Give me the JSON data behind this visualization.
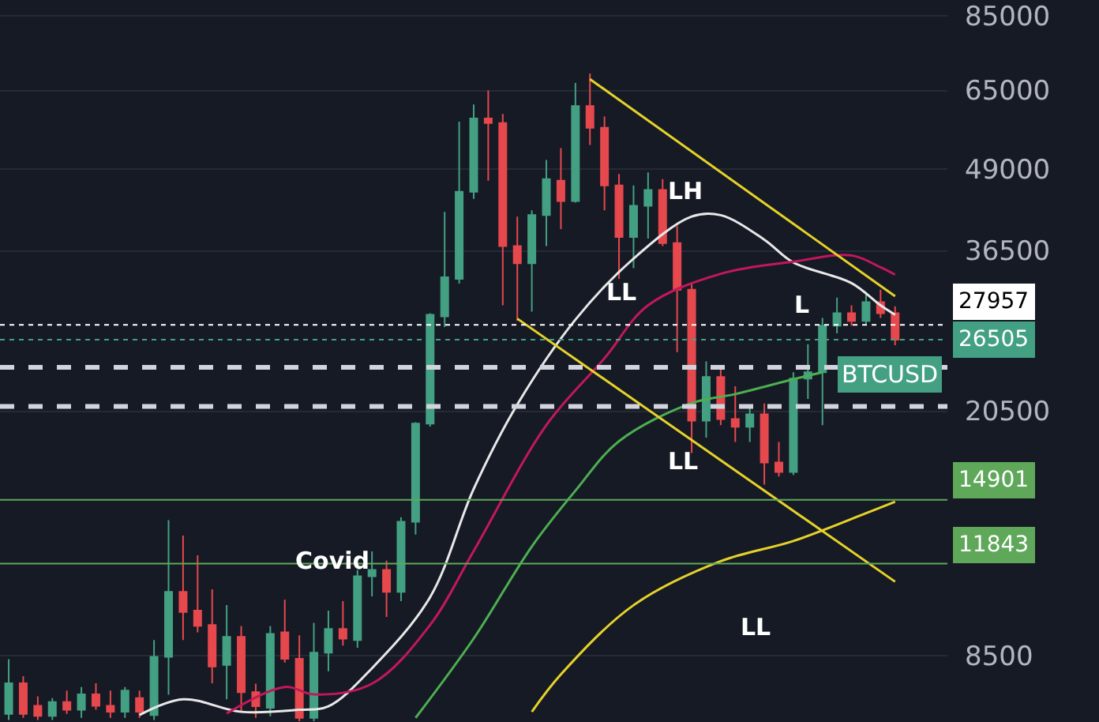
{
  "chart_data": {
    "type": "candlestick",
    "categories": [
      null,
      null,
      null,
      null,
      null,
      null,
      null,
      null,
      null,
      null,
      null,
      null,
      null,
      null,
      null,
      null,
      null,
      null,
      null,
      null,
      null,
      null,
      null,
      null,
      null,
      null,
      null,
      null,
      null,
      null,
      null,
      null,
      null,
      null,
      null,
      null,
      null,
      null,
      null,
      null,
      null,
      null,
      null,
      null,
      null,
      null,
      null,
      null,
      null,
      null,
      null,
      null,
      null,
      null,
      null,
      null,
      null,
      null,
      null,
      null,
      null,
      null
    ],
    "ohlc": [
      [
        6900,
        8400,
        6750,
        7700
      ],
      [
        7700,
        7900,
        6800,
        6900
      ],
      [
        7100,
        7350,
        6750,
        6850
      ],
      [
        6850,
        7300,
        6750,
        7200
      ],
      [
        7200,
        7500,
        6900,
        7000
      ],
      [
        7000,
        7600,
        6800,
        7400
      ],
      [
        7400,
        7700,
        7000,
        7100
      ],
      [
        7100,
        7500,
        6800,
        6950
      ],
      [
        6950,
        7600,
        6800,
        7500
      ],
      [
        7300,
        7500,
        6800,
        6950
      ],
      [
        6870,
        9000,
        6750,
        8470
      ],
      [
        8470,
        13850,
        7390,
        10700
      ],
      [
        10700,
        13100,
        9000,
        9950
      ],
      [
        10000,
        12200,
        9250,
        9470
      ],
      [
        9500,
        10800,
        7700,
        8180
      ],
      [
        8230,
        10200,
        7270,
        9100
      ],
      [
        9100,
        9460,
        6950,
        7460
      ],
      [
        7460,
        7690,
        6800,
        7090
      ],
      [
        7050,
        9460,
        6840,
        9200
      ],
      [
        9250,
        10400,
        8300,
        8410
      ],
      [
        8410,
        9150,
        6720,
        6800
      ],
      [
        6800,
        9570,
        6720,
        8600
      ],
      [
        8600,
        10000,
        8040,
        9360
      ],
      [
        9360,
        10350,
        8820,
        9040
      ],
      [
        9000,
        11580,
        8750,
        11320
      ],
      [
        11320,
        12380,
        10530,
        11580
      ],
      [
        11580,
        11970,
        9780,
        10700
      ],
      [
        10700,
        14000,
        10350,
        13770
      ],
      [
        13770,
        19700,
        13150,
        19600
      ],
      [
        19600,
        29170,
        19400,
        29000
      ],
      [
        28840,
        42000,
        27750,
        33180
      ],
      [
        33000,
        58110,
        32440,
        45160
      ],
      [
        45160,
        61800,
        44000,
        58770
      ],
      [
        58770,
        65000,
        46970,
        57790
      ],
      [
        57790,
        59740,
        30000,
        37120
      ],
      [
        37120,
        41290,
        28360,
        34900
      ],
      [
        34900,
        42220,
        29330,
        41520
      ],
      [
        41520,
        50600,
        37120,
        47230
      ],
      [
        46970,
        52830,
        39480,
        43670
      ],
      [
        43670,
        66800,
        43430,
        61460
      ],
      [
        61460,
        69120,
        53430,
        56820
      ],
      [
        56820,
        59180,
        42220,
        46180
      ],
      [
        46180,
        48140,
        33000,
        38360
      ],
      [
        38360,
        46180,
        34300,
        42930
      ],
      [
        42930,
        48410,
        38140,
        45420
      ],
      [
        45420,
        47230,
        37120,
        37540
      ],
      [
        37540,
        39920,
        25360,
        31730
      ],
      [
        31730,
        32630,
        17640,
        19820
      ],
      [
        19820,
        24520,
        18640,
        23190
      ],
      [
        23190,
        23980,
        19490,
        19930
      ],
      [
        19930,
        22420,
        18350,
        19380
      ],
      [
        19380,
        20850,
        18350,
        20270
      ],
      [
        20270,
        21080,
        15740,
        17040
      ],
      [
        17040,
        18350,
        16200,
        16470
      ],
      [
        16470,
        23580,
        16300,
        23050
      ],
      [
        23050,
        26080,
        21430,
        23580
      ],
      [
        23580,
        28670,
        19490,
        27890
      ],
      [
        27890,
        30850,
        27130,
        29170
      ],
      [
        29170,
        30000,
        27890,
        28360
      ],
      [
        28360,
        31380,
        28050,
        30340
      ],
      [
        30340,
        31730,
        28670,
        29170
      ],
      [
        29170,
        29900,
        26000,
        26505
      ]
    ],
    "colors": [
      "#43a082",
      "#e5484d",
      "#e5484d",
      "#43a082",
      "#e5484d",
      "#43a082",
      "#e5484d",
      "#e5484d",
      "#43a082",
      "#e5484d",
      "#43a082",
      "#43a082",
      "#e5484d",
      "#e5484d",
      "#e5484d",
      "#43a082",
      "#e5484d",
      "#e5484d",
      "#43a082",
      "#e5484d",
      "#e5484d",
      "#43a082",
      "#43a082",
      "#e5484d",
      "#43a082",
      "#43a082",
      "#e5484d",
      "#43a082",
      "#43a082",
      "#43a082",
      "#43a082",
      "#43a082",
      "#43a082",
      "#e5484d",
      "#e5484d",
      "#e5484d",
      "#43a082",
      "#43a082",
      "#e5484d",
      "#43a082",
      "#e5484d",
      "#e5484d",
      "#e5484d",
      "#43a082",
      "#43a082",
      "#e5484d",
      "#e5484d",
      "#e5484d",
      "#43a082",
      "#e5484d",
      "#e5484d",
      "#43a082",
      "#e5484d",
      "#e5484d",
      "#43a082",
      "#43a082",
      "#43a082",
      "#43a082",
      "#e5484d",
      "#43a082",
      "#e5484d",
      "#e5484d"
    ],
    "series": [
      {
        "type": "line",
        "color": "#e8e8e8",
        "values": [
          null,
          null,
          null,
          null,
          null,
          null,
          null,
          null,
          null,
          6870,
          null,
          null,
          7270,
          null,
          null,
          null,
          6950,
          null,
          null,
          null,
          7000,
          null,
          7090,
          null,
          null,
          8130,
          null,
          null,
          null,
          10500,
          null,
          null,
          15500,
          null,
          null,
          21000,
          null,
          null,
          null,
          28500,
          null,
          null,
          null,
          35500,
          null,
          null,
          null,
          41300,
          null,
          41500,
          null,
          null,
          38000,
          null,
          35000,
          null,
          null,
          null,
          32500,
          null,
          30000,
          29000
        ]
      },
      {
        "type": "line",
        "color": "#c2185b",
        "values": [
          null,
          null,
          null,
          null,
          null,
          null,
          null,
          null,
          null,
          null,
          null,
          null,
          null,
          null,
          null,
          6910,
          null,
          null,
          null,
          7600,
          null,
          7400,
          null,
          null,
          null,
          7690,
          null,
          null,
          null,
          9500,
          null,
          null,
          12400,
          null,
          null,
          null,
          null,
          19500,
          null,
          null,
          null,
          24800,
          null,
          null,
          30000,
          null,
          null,
          null,
          null,
          33600,
          null,
          null,
          null,
          null,
          35100,
          null,
          null,
          null,
          35900,
          null,
          34400,
          33500
        ]
      },
      {
        "type": "line",
        "color": "#4caf50",
        "values": [
          null,
          null,
          null,
          null,
          null,
          null,
          null,
          null,
          null,
          null,
          null,
          null,
          null,
          null,
          null,
          null,
          null,
          null,
          null,
          null,
          null,
          null,
          null,
          null,
          null,
          null,
          null,
          null,
          6800,
          null,
          null,
          null,
          9050,
          null,
          null,
          null,
          12600,
          null,
          null,
          15400,
          null,
          null,
          18400,
          null,
          null,
          null,
          null,
          21100,
          null,
          null,
          21800,
          null,
          null,
          null,
          23000,
          null,
          23580,
          null,
          null,
          null,
          null,
          null
        ]
      },
      {
        "type": "line",
        "color": "#e6d229",
        "values": [
          null,
          null,
          null,
          null,
          null,
          null,
          null,
          null,
          null,
          null,
          null,
          null,
          null,
          null,
          null,
          null,
          null,
          null,
          null,
          null,
          null,
          null,
          null,
          null,
          null,
          null,
          null,
          null,
          null,
          null,
          null,
          null,
          null,
          null,
          null,
          null,
          6950,
          null,
          7950,
          null,
          null,
          null,
          null,
          10200,
          null,
          null,
          null,
          null,
          null,
          11950,
          null,
          null,
          null,
          null,
          12850,
          null,
          null,
          null,
          null,
          14200,
          null,
          14800
        ]
      },
      {
        "type": "line",
        "color": "#e6d229",
        "values": [
          null,
          null,
          null,
          null,
          null,
          null,
          null,
          null,
          null,
          null,
          null,
          null,
          null,
          null,
          null,
          null,
          null,
          null,
          null,
          null,
          null,
          null,
          null,
          null,
          null,
          null,
          null,
          null,
          null,
          null,
          null,
          null,
          null,
          null,
          null,
          null,
          null,
          null,
          null,
          null,
          67700,
          null,
          null,
          null,
          null,
          null,
          null,
          null,
          null,
          null,
          null,
          null,
          null,
          null,
          null,
          null,
          null,
          null,
          null,
          null,
          null,
          31000
        ]
      },
      {
        "type": "line",
        "color": "#e6d229",
        "values": [
          null,
          null,
          null,
          null,
          null,
          null,
          null,
          null,
          null,
          null,
          null,
          null,
          null,
          null,
          null,
          null,
          null,
          null,
          null,
          null,
          null,
          null,
          null,
          null,
          null,
          null,
          null,
          null,
          null,
          null,
          null,
          null,
          null,
          null,
          null,
          28600,
          null,
          null,
          null,
          null,
          null,
          null,
          null,
          null,
          null,
          null,
          null,
          null,
          null,
          null,
          null,
          null,
          null,
          null,
          null,
          null,
          null,
          null,
          null,
          null,
          null,
          11100
        ]
      }
    ],
    "annotations": [
      "Covid",
      "LH",
      "LL",
      "LL",
      "LL",
      "L",
      {
        "text": "BTCUSD",
        "y": 26505
      }
    ],
    "ref_lines": [
      {
        "axis": "y",
        "value": 27957,
        "label": "27957",
        "color": "#ffffff",
        "line_style": "dotted"
      },
      {
        "axis": "y",
        "value": 26505,
        "label": "26505",
        "color": "#43a082",
        "line_style": "dotted"
      },
      {
        "axis": "y",
        "value": 24000,
        "color": "#d1d4dc",
        "line_style": "dashed"
      },
      {
        "axis": "y",
        "value": 20850,
        "color": "#d1d4dc",
        "line_style": "dashed"
      },
      {
        "axis": "y",
        "value": 14901,
        "label": "14901",
        "color": "#5fa85a",
        "line_style": "solid"
      },
      {
        "axis": "y",
        "value": 11843,
        "label": "11843",
        "color": "#5fa85a",
        "line_style": "solid"
      }
    ],
    "ylim": [
      6700,
      90000
    ],
    "yticks": [
      8500,
      20500,
      36500,
      49000,
      65000,
      85000
    ],
    "log": true,
    "grid": "y",
    "tick_labels": "y"
  }
}
